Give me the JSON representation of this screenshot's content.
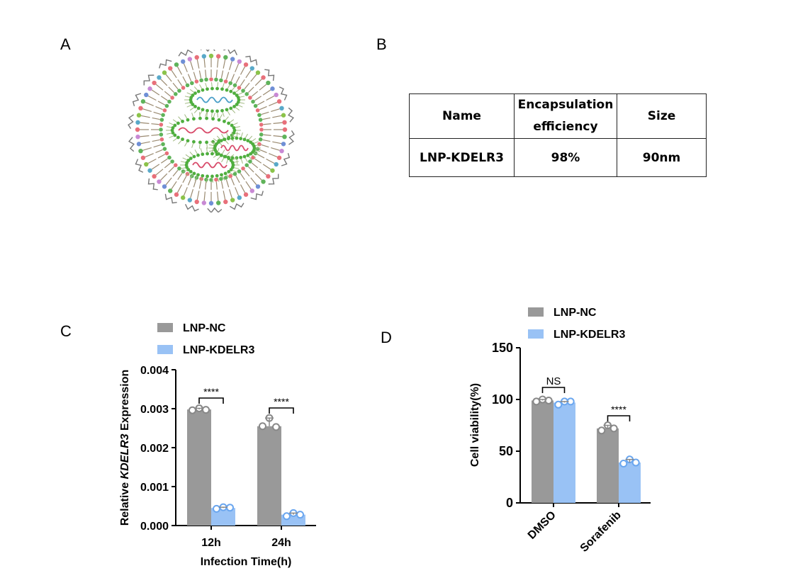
{
  "panels": {
    "a": "A",
    "b": "B",
    "c": "C",
    "d": "D"
  },
  "table": {
    "headers": [
      "Name",
      "Encapsulation efficiency",
      "Size"
    ],
    "rows": [
      [
        "LNP-KDELR3",
        "98%",
        "90nm"
      ]
    ]
  },
  "colors": {
    "nc": "#999999",
    "kdelr3": "#99c2f5",
    "kdelr3_point": "#6aa6ef"
  },
  "chart_data": [
    {
      "type": "bar",
      "panel": "C",
      "categories": [
        "12h",
        "24h"
      ],
      "series": [
        {
          "name": "LNP-NC",
          "values": [
            0.00298,
            0.00255
          ],
          "points": [
            [
              0.00296,
              0.00301,
              0.00297
            ],
            [
              0.00255,
              0.00276,
              0.00253
            ]
          ]
        },
        {
          "name": "LNP-KDELR3",
          "values": [
            0.00045,
            0.00028
          ],
          "points": [
            [
              0.00043,
              0.00047,
              0.00046
            ],
            [
              0.00024,
              0.00032,
              0.00028
            ]
          ]
        }
      ],
      "xlabel": "Infection Time(h)",
      "ylabel_prefix": "Relative ",
      "ylabel_gene": "KDELR3",
      "ylabel_suffix": " Expression",
      "ylim": [
        0,
        0.004
      ],
      "yticks": [
        "0.000",
        "0.001",
        "0.002",
        "0.003",
        "0.004"
      ],
      "significance": [
        "****",
        "****"
      ],
      "legend": [
        "LNP-NC",
        "LNP-KDELR3"
      ],
      "legend_position": "top"
    },
    {
      "type": "bar",
      "panel": "D",
      "categories": [
        "DMSO",
        "Sorafenib"
      ],
      "series": [
        {
          "name": "LNP-NC",
          "values": [
            99,
            72
          ],
          "points": [
            [
              98,
              100,
              99
            ],
            [
              70,
              75,
              72
            ]
          ]
        },
        {
          "name": "LNP-KDELR3",
          "values": [
            97,
            39
          ],
          "points": [
            [
              95,
              98,
              98
            ],
            [
              38,
              42,
              39
            ]
          ]
        }
      ],
      "ylabel": "Cell viability(%)",
      "ylim": [
        0,
        150
      ],
      "yticks": [
        "0",
        "50",
        "100",
        "150"
      ],
      "significance": [
        "NS",
        "****"
      ],
      "legend": [
        "LNP-NC",
        "LNP-KDELR3"
      ],
      "legend_position": "top"
    }
  ]
}
